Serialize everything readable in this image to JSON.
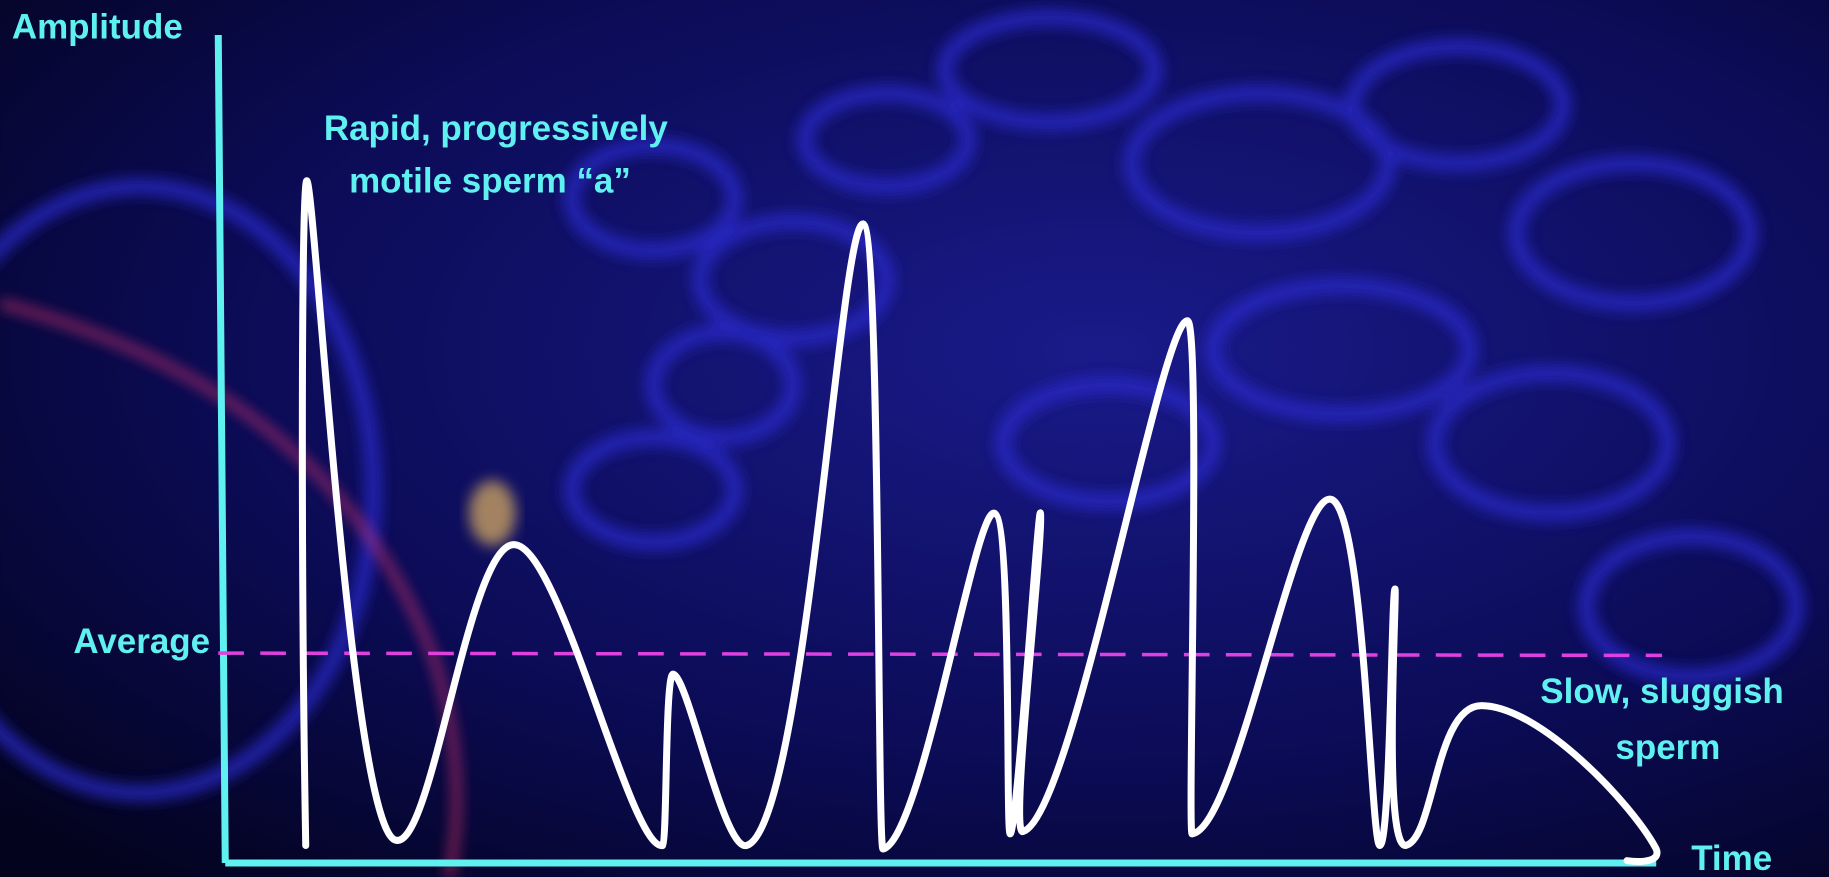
{
  "axes": {
    "y_label": "Amplitude",
    "x_label": "Time"
  },
  "average_label": "Average",
  "annotations": [
    {
      "lines": [
        "Rapid, progressively",
        "motile sperm “a”"
      ]
    },
    {
      "lines": [
        "Slow, sluggish",
        "sperm"
      ]
    }
  ]
}
